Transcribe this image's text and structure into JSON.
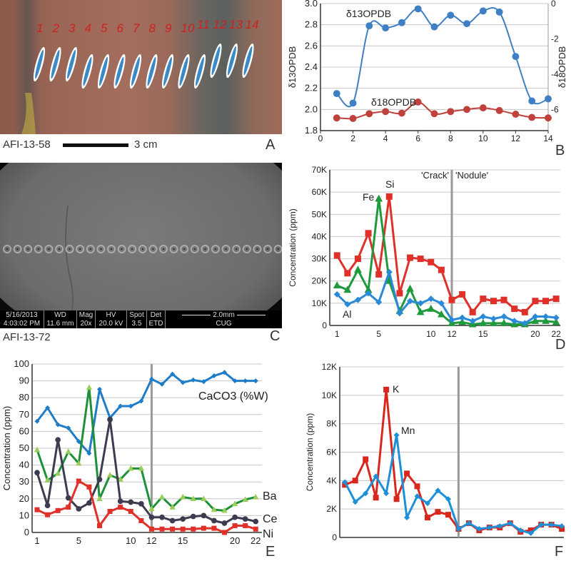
{
  "panels": {
    "A": {
      "letter": "A",
      "sample": "AFI-13-58",
      "scale_label": "3 cm",
      "marks": [
        "1",
        "2",
        "3",
        "4",
        "5",
        "6",
        "7",
        "8",
        "9",
        "10",
        "11",
        "12",
        "13",
        "14"
      ]
    },
    "B": {
      "letter": "B"
    },
    "C": {
      "letter": "C",
      "sample": "AFI-13-72",
      "sem_info": {
        "date": "5/16/2013",
        "time": "4:03:02 PM",
        "wd_label": "WD",
        "wd": "11.6 mm",
        "mag_label": "Mag",
        "mag": "20x",
        "hv_label": "HV",
        "hv": "20.0 kV",
        "spot_label": "Spot",
        "spot": "3.5",
        "det_label": "Det",
        "det": "ETD",
        "scale": "2.0mm",
        "lab": "CUG"
      }
    },
    "D": {
      "letter": "D"
    },
    "E": {
      "letter": "E"
    },
    "F": {
      "letter": "F"
    }
  },
  "chart_data": [
    {
      "id": "B",
      "type": "line",
      "smooth": true,
      "x": [
        1,
        2,
        3,
        4,
        5,
        6,
        7,
        8,
        9,
        10,
        11,
        12,
        13,
        14
      ],
      "xlim": [
        0,
        14
      ],
      "xticks": [
        "0",
        "2",
        "4",
        "6",
        "8",
        "10",
        "12",
        "14"
      ],
      "ylabel": "δ13OPDB",
      "ylim": [
        1.8,
        3.0
      ],
      "yticks": [
        "1.8",
        "2.0",
        "2.2",
        "2.4",
        "2.6",
        "2.8",
        "3.0"
      ],
      "y2label": "δ18OPDB",
      "y2lim": [
        -7.2,
        0
      ],
      "y2ticks": [
        "-6",
        "-4",
        "-2",
        "0"
      ],
      "grid": true,
      "series": [
        {
          "name": "δ13OPDB",
          "axis": "left",
          "color": "#3f7fc4",
          "marker": "circle",
          "values": [
            2.15,
            2.06,
            2.79,
            2.77,
            2.82,
            2.95,
            2.78,
            2.89,
            2.81,
            2.93,
            2.92,
            2.5,
            2.08,
            2.1
          ]
        },
        {
          "name": "δ18OPDB",
          "axis": "right",
          "color": "#c0403c",
          "marker": "circle",
          "values": [
            -6.48,
            -6.51,
            -6.24,
            -6.12,
            -6.21,
            -5.58,
            -6.24,
            -6.12,
            -6.0,
            -5.91,
            -6.06,
            -6.27,
            -6.45,
            -6.48
          ]
        }
      ]
    },
    {
      "id": "D",
      "type": "line",
      "x": [
        1,
        2,
        3,
        4,
        5,
        6,
        7,
        8,
        9,
        10,
        11,
        12,
        13,
        14,
        15,
        16,
        17,
        18,
        19,
        20,
        21,
        22
      ],
      "xticks": [
        "1",
        "5",
        "10",
        "12",
        "15",
        "20",
        "22"
      ],
      "ylabel": "Concentration  (ppm)",
      "ylim": [
        0,
        70000
      ],
      "yticks": [
        "0",
        "10K",
        "20K",
        "30K",
        "40K",
        "50K",
        "60K",
        "70K"
      ],
      "grid": true,
      "divider_x": 12,
      "annotations": [
        "'Crack'",
        "'Nodule'"
      ],
      "series": [
        {
          "name": "Si",
          "color": "#e0302a",
          "marker": "square",
          "values": [
            31500,
            23500,
            30000,
            41500,
            23000,
            58000,
            14500,
            30500,
            30000,
            28500,
            25000,
            11500,
            14000,
            6000,
            12000,
            11000,
            11500,
            7500,
            6000,
            11000,
            11000,
            12000
          ]
        },
        {
          "name": "Fe",
          "color": "#1e9a3c",
          "marker": "triangle",
          "values": [
            18000,
            16000,
            25000,
            16000,
            57000,
            20000,
            6500,
            16500,
            6000,
            7500,
            5000,
            1000,
            1500,
            500,
            1000,
            1000,
            1000,
            500,
            500,
            2000,
            2000,
            1500
          ]
        },
        {
          "name": "Al",
          "color": "#2a8ad8",
          "marker": "diamond",
          "values": [
            14000,
            9500,
            11500,
            14500,
            10500,
            24000,
            5500,
            11000,
            10000,
            12000,
            10000,
            2500,
            3500,
            2000,
            4000,
            3000,
            4000,
            2000,
            1000,
            4000,
            4000,
            3500
          ]
        }
      ]
    },
    {
      "id": "E",
      "type": "line",
      "x": [
        1,
        2,
        3,
        4,
        5,
        6,
        7,
        8,
        9,
        10,
        11,
        12,
        13,
        14,
        15,
        16,
        17,
        18,
        19,
        20,
        21,
        22
      ],
      "xticks": [
        "1",
        "5",
        "10",
        "12",
        "15",
        "20",
        "22"
      ],
      "ylabel": "Concentration  (ppm)",
      "ylim": [
        0,
        100
      ],
      "yticks": [
        "0",
        "10",
        "20",
        "30",
        "40",
        "50",
        "60",
        "70",
        "80",
        "90",
        "100"
      ],
      "grid": true,
      "divider_x": 12,
      "series": [
        {
          "name": "CaCO3 (%W)",
          "color": "#1e7cc8",
          "marker": "diamond",
          "values": [
            66,
            74,
            64,
            62,
            54,
            47,
            85,
            68,
            75,
            75,
            78,
            91,
            88,
            94,
            89,
            90.5,
            89.5,
            93,
            95,
            90,
            90,
            90
          ]
        },
        {
          "name": "Ba",
          "color": "#1e9038",
          "marker": "triangle",
          "marker_color": "#9acd5a",
          "values": [
            49,
            31,
            35,
            48,
            41,
            86,
            20,
            34,
            31.5,
            38,
            38,
            14,
            21,
            15,
            21,
            20,
            20,
            13.5,
            13,
            17,
            19.5,
            21
          ]
        },
        {
          "name": "Ce",
          "color": "#3c3c50",
          "marker": "circle",
          "values": [
            35.5,
            16,
            55,
            20.5,
            14,
            17.5,
            31.5,
            67,
            18.5,
            18,
            17,
            9,
            9,
            7,
            8,
            9.5,
            10,
            7,
            5.5,
            9,
            8,
            6.5
          ]
        },
        {
          "name": "Ni",
          "color": "#e0302a",
          "marker": "square",
          "values": [
            13.5,
            10.5,
            13,
            15,
            30.5,
            27,
            4,
            12.5,
            15,
            12.5,
            7,
            2,
            2,
            2,
            2,
            2,
            2.5,
            2.5,
            0,
            4,
            4,
            2
          ]
        }
      ]
    },
    {
      "id": "F",
      "type": "line",
      "x": [
        1,
        2,
        3,
        4,
        5,
        6,
        7,
        8,
        9,
        10,
        11,
        12,
        13,
        14,
        15,
        16,
        17,
        18,
        19,
        20,
        21,
        22
      ],
      "xticks": [],
      "ylabel": "Concentration  (ppm)",
      "ylim": [
        0,
        12000
      ],
      "yticks": [
        "0",
        "2K",
        "4K",
        "6K",
        "8K",
        "10K",
        "12K"
      ],
      "grid": true,
      "divider_x": 12,
      "series": [
        {
          "name": "K",
          "color": "#d8281e",
          "marker": "square",
          "values": [
            3700,
            4000,
            5500,
            2800,
            10400,
            2700,
            4500,
            3600,
            1400,
            1800,
            1600,
            600,
            1000,
            500,
            700,
            700,
            1000,
            400,
            500,
            900,
            900,
            600
          ]
        },
        {
          "name": "Mn",
          "color": "#1e90d8",
          "marker": "diamond",
          "values": [
            3900,
            2500,
            3100,
            4300,
            3100,
            7200,
            1400,
            2900,
            2400,
            3300,
            2700,
            600,
            1000,
            600,
            700,
            800,
            1000,
            500,
            300,
            900,
            900,
            800
          ]
        }
      ]
    }
  ]
}
